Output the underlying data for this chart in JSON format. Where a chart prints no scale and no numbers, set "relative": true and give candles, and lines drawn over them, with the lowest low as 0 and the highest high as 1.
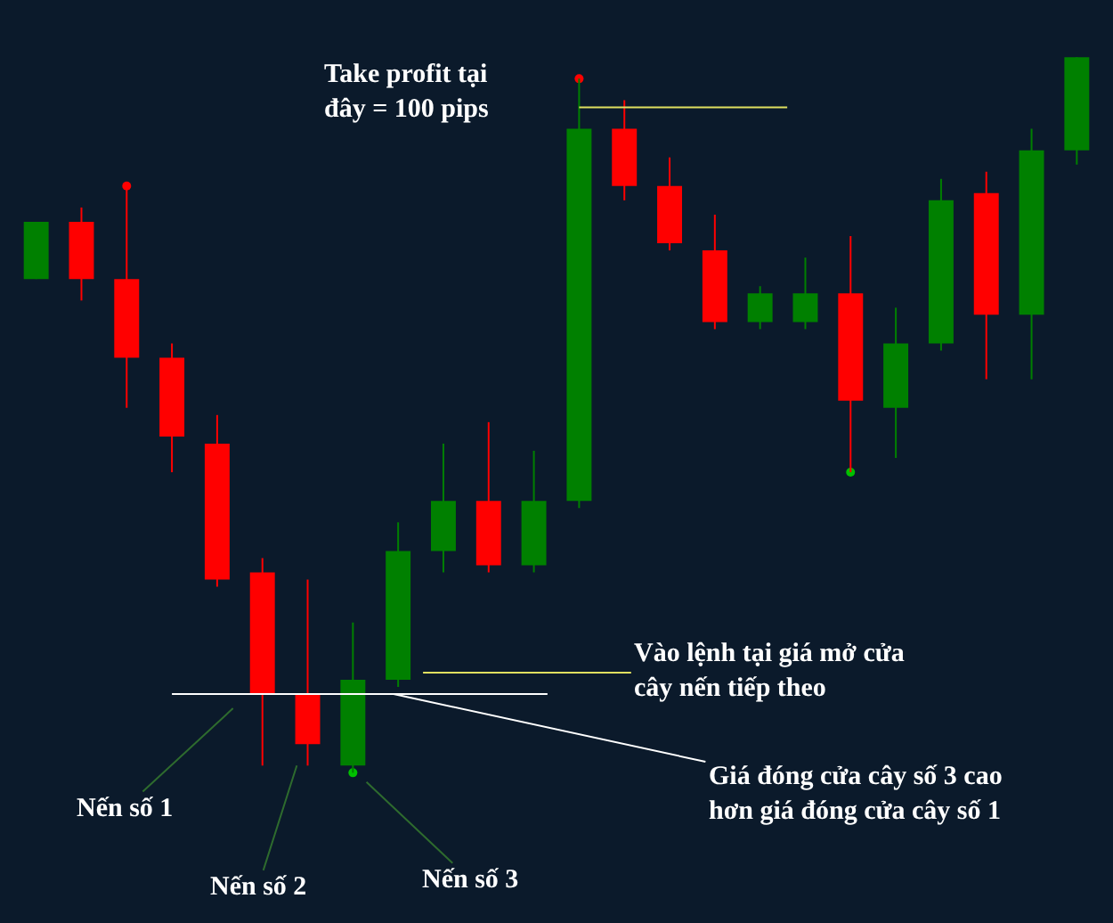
{
  "chart_data": {
    "type": "candlestick",
    "relative": true,
    "categories": [
      null,
      null,
      null,
      null,
      null,
      null,
      null,
      null,
      null,
      null,
      null,
      null,
      null,
      null,
      null,
      null,
      null,
      null,
      null,
      null,
      null,
      null,
      null,
      null
    ],
    "ohlc": [
      [
        0.69,
        0.77,
        0.69,
        0.77
      ],
      [
        0.77,
        0.79,
        0.66,
        0.69
      ],
      [
        0.69,
        0.82,
        0.51,
        0.58
      ],
      [
        0.58,
        0.6,
        0.42,
        0.47
      ],
      [
        0.46,
        0.5,
        0.26,
        0.27
      ],
      [
        0.28,
        0.3,
        0.01,
        0.11
      ],
      [
        0.11,
        0.27,
        0.01,
        0.04
      ],
      [
        0.01,
        0.21,
        0,
        0.13
      ],
      [
        0.13,
        0.35,
        0.12,
        0.31
      ],
      [
        0.31,
        0.46,
        0.28,
        0.38
      ],
      [
        0.38,
        0.49,
        0.28,
        0.29
      ],
      [
        0.29,
        0.45,
        0.28,
        0.38
      ],
      [
        0.38,
        0.97,
        0.37,
        0.9
      ],
      [
        0.9,
        0.94,
        0.8,
        0.82
      ],
      [
        0.82,
        0.86,
        0.73,
        0.74
      ],
      [
        0.73,
        0.78,
        0.62,
        0.63
      ],
      [
        0.63,
        0.68,
        0.62,
        0.67
      ],
      [
        0.63,
        0.72,
        0.62,
        0.67
      ],
      [
        0.67,
        0.75,
        0.42,
        0.52
      ],
      [
        0.51,
        0.65,
        0.44,
        0.6
      ],
      [
        0.6,
        0.83,
        0.59,
        0.8
      ],
      [
        0.81,
        0.84,
        0.55,
        0.64
      ],
      [
        0.64,
        0.9,
        0.55,
        0.87
      ],
      [
        0.87,
        1,
        0.85,
        1
      ]
    ],
    "colors": [
      "#008000",
      "#ff0000",
      "#ff0000",
      "#ff0000",
      "#ff0000",
      "#ff0000",
      "#ff0000",
      "#008000",
      "#008000",
      "#008000",
      "#ff0000",
      "#008000",
      "#008000",
      "#ff0000",
      "#ff0000",
      "#ff0000",
      "#008000",
      "#008000",
      "#ff0000",
      "#008000",
      "#008000",
      "#ff0000",
      "#008000",
      "#008000"
    ],
    "series": [
      {
        "type": "scatter",
        "color": "#ff0000",
        "values": [
          null,
          null,
          0.82,
          null,
          null,
          null,
          null,
          null,
          null,
          null,
          null,
          null,
          0.97,
          null,
          null,
          null,
          null,
          null,
          null,
          null,
          null,
          null,
          null,
          null
        ]
      },
      {
        "type": "scatter",
        "color": "#00c000",
        "values": [
          null,
          null,
          null,
          null,
          null,
          null,
          null,
          0,
          null,
          null,
          null,
          null,
          null,
          null,
          null,
          null,
          null,
          null,
          0.42,
          null,
          null,
          null,
          null,
          null
        ]
      }
    ],
    "marker": "circle",
    "ref_lines": [
      {
        "axis": "y",
        "value": 0.11,
        "color": "#ffffff"
      },
      {
        "axis": "y",
        "value": 0.93,
        "color": "#e0e060"
      }
    ],
    "annotations": [
      "Take profit tại\nđây = 100 pips",
      "Vào lệnh tại giá mở cửa\ncây nến tiếp theo",
      "Giá đóng cửa cây số 3 cao\nhơn giá đóng cửa cây số 1",
      "Nến số 1",
      "Nến số 2",
      "Nến số 3"
    ]
  }
}
